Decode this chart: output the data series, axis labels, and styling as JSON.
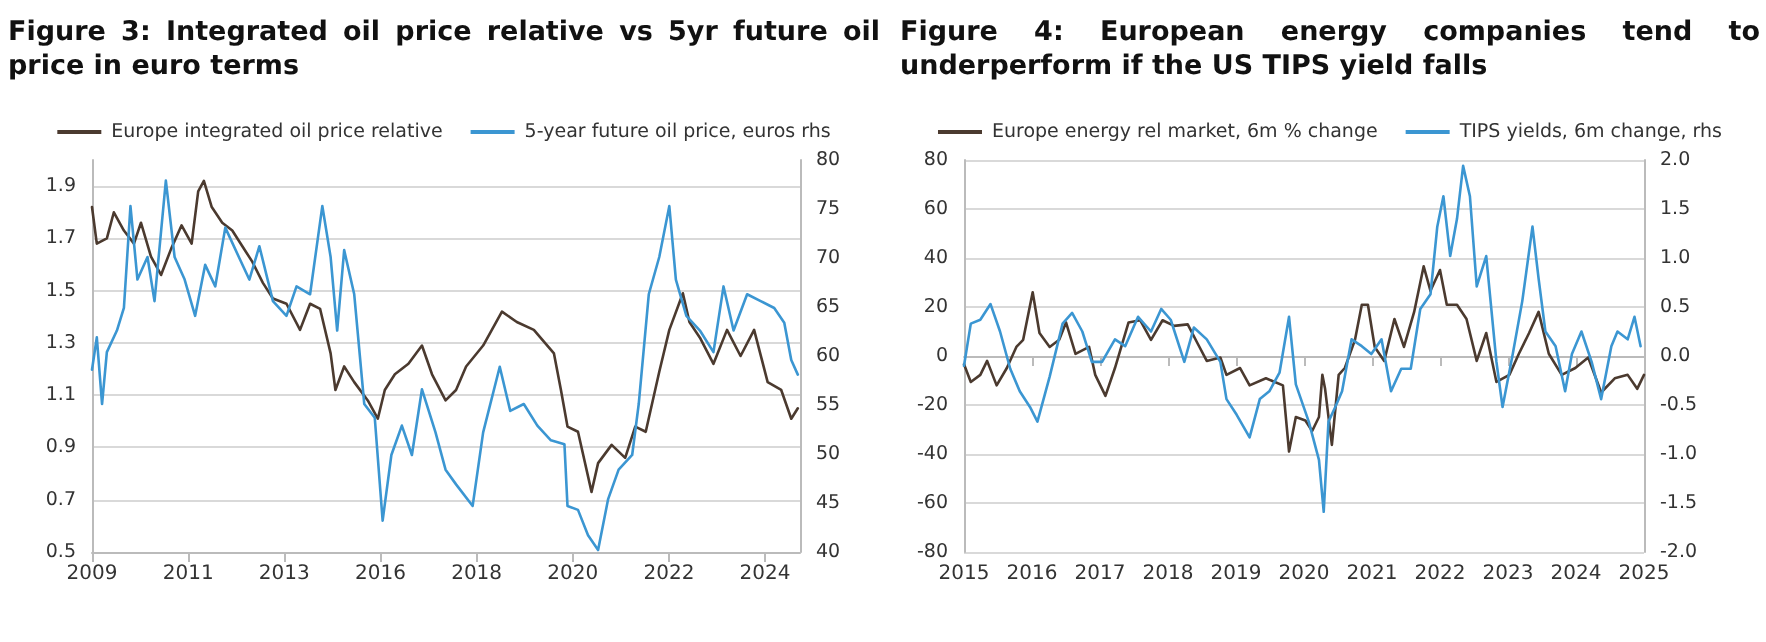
{
  "chart_data": [
    {
      "type": "line",
      "title": "Figure 3: Integrated oil price relative vs 5yr future oil price in euro terms",
      "xlim": [
        2009,
        2025.2
      ],
      "xticks": [
        2009,
        {
          "value": 2011.2,
          "label": "2011"
        },
        {
          "value": 2013.4,
          "label": "2013"
        },
        {
          "value": 2015.6,
          "label": "2016"
        },
        {
          "value": 2017.8,
          "label": "2018"
        },
        {
          "value": 2020.0,
          "label": "2020"
        },
        {
          "value": 2022.2,
          "label": "2022"
        },
        {
          "value": 2024.4,
          "label": "2024"
        }
      ],
      "ylim": [
        0.5,
        2.0
      ],
      "yticks": [
        0.5,
        0.7,
        0.9,
        1.1,
        1.3,
        1.5,
        1.7,
        1.9
      ],
      "y2lim": [
        40,
        80
      ],
      "y2ticks": [
        40,
        45,
        50,
        55,
        60,
        65,
        70,
        75,
        80
      ],
      "grid": "y",
      "legend": "top",
      "marker": "none",
      "line_style": "solid",
      "series": [
        {
          "name": "Europe integrated oil price relative",
          "color": "#4b3a2f",
          "x": [
            2009.0,
            2009.11,
            2009.34,
            2009.5,
            2009.73,
            2009.96,
            2010.12,
            2010.35,
            2010.58,
            2010.81,
            2011.05,
            2011.28,
            2011.43,
            2011.56,
            2011.74,
            2011.98,
            2012.21,
            2012.44,
            2012.67,
            2012.91,
            2013.14,
            2013.45,
            2013.76,
            2013.99,
            2014.22,
            2014.46,
            2014.57,
            2014.77,
            2015.0,
            2015.31,
            2015.54,
            2015.7,
            2015.93,
            2016.24,
            2016.55,
            2016.78,
            2017.09,
            2017.33,
            2017.56,
            2017.95,
            2018.38,
            2018.72,
            2019.11,
            2019.57,
            2019.73,
            2019.88,
            2020.12,
            2020.43,
            2020.58,
            2020.89,
            2021.2,
            2021.43,
            2021.67,
            2021.98,
            2022.21,
            2022.52,
            2022.67,
            2022.91,
            2023.22,
            2023.53,
            2023.84,
            2024.15,
            2024.46,
            2024.77,
            2025.0,
            2025.15
          ],
          "values": [
            1.82,
            1.68,
            1.7,
            1.8,
            1.73,
            1.68,
            1.76,
            1.63,
            1.56,
            1.66,
            1.75,
            1.68,
            1.88,
            1.92,
            1.82,
            1.76,
            1.73,
            1.67,
            1.61,
            1.53,
            1.47,
            1.45,
            1.35,
            1.45,
            1.43,
            1.26,
            1.12,
            1.21,
            1.15,
            1.08,
            1.01,
            1.12,
            1.18,
            1.22,
            1.29,
            1.18,
            1.08,
            1.12,
            1.21,
            1.29,
            1.42,
            1.38,
            1.35,
            1.26,
            1.12,
            0.98,
            0.96,
            0.73,
            0.84,
            0.91,
            0.86,
            0.98,
            0.96,
            1.19,
            1.35,
            1.49,
            1.38,
            1.32,
            1.22,
            1.35,
            1.25,
            1.35,
            1.15,
            1.12,
            1.01,
            1.05
          ]
        },
        {
          "name": "5-year future oil price, euros rhs",
          "color": "#3b96d2",
          "axis": "y2",
          "x": [
            2009.0,
            2009.11,
            2009.23,
            2009.34,
            2009.57,
            2009.73,
            2009.88,
            2010.04,
            2010.27,
            2010.43,
            2010.69,
            2010.89,
            2011.12,
            2011.36,
            2011.59,
            2011.82,
            2012.05,
            2012.36,
            2012.6,
            2012.83,
            2013.14,
            2013.45,
            2013.68,
            2013.99,
            2014.27,
            2014.46,
            2014.61,
            2014.77,
            2015.0,
            2015.23,
            2015.47,
            2015.65,
            2015.85,
            2016.09,
            2016.32,
            2016.55,
            2016.86,
            2017.09,
            2017.33,
            2017.71,
            2017.95,
            2018.33,
            2018.57,
            2018.88,
            2019.19,
            2019.5,
            2019.81,
            2019.88,
            2020.12,
            2020.35,
            2020.58,
            2020.81,
            2021.05,
            2021.36,
            2021.51,
            2021.74,
            2021.98,
            2022.21,
            2022.36,
            2022.6,
            2022.91,
            2023.22,
            2023.45,
            2023.68,
            2023.99,
            2024.3,
            2024.61,
            2024.84,
            2025.0,
            2025.15
          ],
          "values": [
            58.6,
            61.9,
            55.1,
            60.4,
            62.6,
            64.9,
            75.3,
            67.8,
            70.1,
            65.6,
            77.9,
            70.1,
            67.8,
            64.1,
            69.3,
            67.1,
            73.1,
            70.1,
            67.8,
            71.2,
            65.6,
            64.1,
            67.1,
            66.3,
            75.3,
            70.1,
            62.6,
            70.8,
            66.3,
            55.1,
            53.7,
            43.2,
            49.9,
            52.9,
            49.9,
            56.6,
            52.2,
            48.4,
            46.9,
            44.7,
            52.2,
            58.9,
            54.4,
            55.1,
            52.9,
            51.4,
            51.0,
            44.7,
            44.3,
            41.7,
            40.2,
            45.4,
            48.4,
            49.9,
            55.1,
            66.3,
            70.1,
            75.3,
            67.8,
            64.1,
            62.6,
            60.4,
            67.1,
            62.6,
            66.3,
            65.6,
            64.9,
            63.4,
            59.6,
            58.1
          ]
        }
      ]
    },
    {
      "type": "line",
      "title": "Figure 4: European energy companies tend to underperform if the US TIPS yield falls",
      "xlim": [
        2015,
        2025
      ],
      "xticks": [
        2015,
        2016,
        2017,
        2018,
        2019,
        2020,
        2021,
        2022,
        2023,
        2024,
        2025
      ],
      "ylim": [
        -80,
        80
      ],
      "yticks": [
        -80,
        -60,
        -40,
        -20,
        0,
        20,
        40,
        60,
        80
      ],
      "y2lim": [
        -2,
        2
      ],
      "y2ticks": [
        {
          "value": -2,
          "label": "-2.0"
        },
        {
          "value": -1.5,
          "label": "-1.5"
        },
        {
          "value": -1,
          "label": "-1.0"
        },
        {
          "value": -0.5,
          "label": "-0.5"
        },
        {
          "value": 0,
          "label": "0.0"
        },
        {
          "value": 0.5,
          "label": "0.5"
        },
        {
          "value": 1,
          "label": "1.0"
        },
        {
          "value": 1.5,
          "label": "1.5"
        },
        {
          "value": 2,
          "label": "2.0"
        }
      ],
      "grid": "y",
      "legend": "top",
      "marker": "none",
      "line_style": "solid",
      "series": [
        {
          "name": "Europe energy rel market, 6m % change",
          "color": "#4b3a2f",
          "x": [
            2015.0,
            2015.1,
            2015.24,
            2015.34,
            2015.48,
            2015.63,
            2015.77,
            2015.87,
            2016.01,
            2016.11,
            2016.26,
            2016.4,
            2016.5,
            2016.64,
            2016.84,
            2016.93,
            2017.08,
            2017.22,
            2017.42,
            2017.59,
            2017.75,
            2017.92,
            2018.09,
            2018.29,
            2018.43,
            2018.57,
            2018.77,
            2018.86,
            2019.06,
            2019.2,
            2019.44,
            2019.69,
            2019.78,
            2019.88,
            2020.02,
            2020.12,
            2020.22,
            2020.27,
            2020.31,
            2020.41,
            2020.51,
            2020.6,
            2020.75,
            2020.85,
            2020.94,
            2021.04,
            2021.18,
            2021.33,
            2021.47,
            2021.62,
            2021.76,
            2021.86,
            2022.0,
            2022.1,
            2022.25,
            2022.39,
            2022.54,
            2022.68,
            2022.83,
            2023.02,
            2023.16,
            2023.31,
            2023.45,
            2023.6,
            2023.79,
            2023.99,
            2024.18,
            2024.37,
            2024.57,
            2024.76,
            2024.9,
            2025.0
          ],
          "values": [
            -3.4,
            -10.6,
            -7.7,
            -2,
            -12,
            -4.9,
            3.7,
            6.6,
            26,
            9.4,
            3.7,
            6.6,
            13.7,
            0.9,
            3.7,
            -7.7,
            -16.3,
            -4.9,
            13.7,
            14.6,
            6.6,
            14.6,
            12.3,
            12.9,
            5.4,
            -2,
            -0.6,
            -7.7,
            -4.9,
            -12,
            -9.1,
            -12,
            -39,
            -24.9,
            -26.3,
            -30.6,
            -24.9,
            -7.7,
            -13.4,
            -36.3,
            -7.7,
            -4.9,
            6.6,
            20.9,
            20.9,
            3.7,
            -2,
            15.1,
            3.7,
            18,
            36.6,
            26.6,
            35.1,
            20.9,
            20.9,
            15.1,
            -2,
            9.4,
            -10.6,
            -7.7,
            0.9,
            9.4,
            18,
            0.9,
            -7.7,
            -4.9,
            -0.6,
            -14.9,
            -9.1,
            -7.7,
            -13.4,
            -7.7
          ]
        },
        {
          "name": "TIPS yields, 6m change, rhs",
          "color": "#3b96d2",
          "axis": "y2",
          "x": [
            2015.0,
            2015.1,
            2015.24,
            2015.39,
            2015.53,
            2015.68,
            2015.82,
            2015.97,
            2016.08,
            2016.26,
            2016.45,
            2016.59,
            2016.74,
            2016.88,
            2017.03,
            2017.22,
            2017.37,
            2017.56,
            2017.75,
            2017.9,
            2018.04,
            2018.24,
            2018.38,
            2018.57,
            2018.77,
            2018.86,
            2019.01,
            2019.2,
            2019.35,
            2019.49,
            2019.64,
            2019.78,
            2019.88,
            2020.07,
            2020.22,
            2020.29,
            2020.36,
            2020.46,
            2020.56,
            2020.7,
            2020.85,
            2020.99,
            2021.14,
            2021.28,
            2021.43,
            2021.57,
            2021.71,
            2021.86,
            2021.96,
            2022.05,
            2022.15,
            2022.25,
            2022.34,
            2022.44,
            2022.54,
            2022.68,
            2022.83,
            2022.92,
            2023.07,
            2023.21,
            2023.36,
            2023.45,
            2023.55,
            2023.7,
            2023.84,
            2023.94,
            2024.08,
            2024.23,
            2024.37,
            2024.52,
            2024.61,
            2024.76,
            2024.86,
            2024.95
          ],
          "values": [
            -0.1,
            0.33,
            0.37,
            0.53,
            0.25,
            -0.13,
            -0.36,
            -0.52,
            -0.67,
            -0.21,
            0.33,
            0.44,
            0.25,
            -0.06,
            -0.06,
            0.17,
            0.1,
            0.4,
            0.25,
            0.48,
            0.37,
            -0.06,
            0.29,
            0.17,
            -0.06,
            -0.44,
            -0.6,
            -0.83,
            -0.44,
            -0.36,
            -0.17,
            0.4,
            -0.29,
            -0.67,
            -1.06,
            -1.59,
            -0.67,
            -0.52,
            -0.36,
            0.17,
            0.1,
            0.02,
            0.17,
            -0.36,
            -0.13,
            -0.13,
            0.48,
            0.63,
            1.32,
            1.63,
            1.02,
            1.4,
            1.94,
            1.63,
            0.71,
            1.02,
            -0.06,
            -0.52,
            0.02,
            0.56,
            1.32,
            0.79,
            0.25,
            0.1,
            -0.36,
            0.02,
            0.25,
            -0.06,
            -0.44,
            0.1,
            0.25,
            0.17,
            0.4,
            0.1
          ]
        }
      ]
    }
  ]
}
